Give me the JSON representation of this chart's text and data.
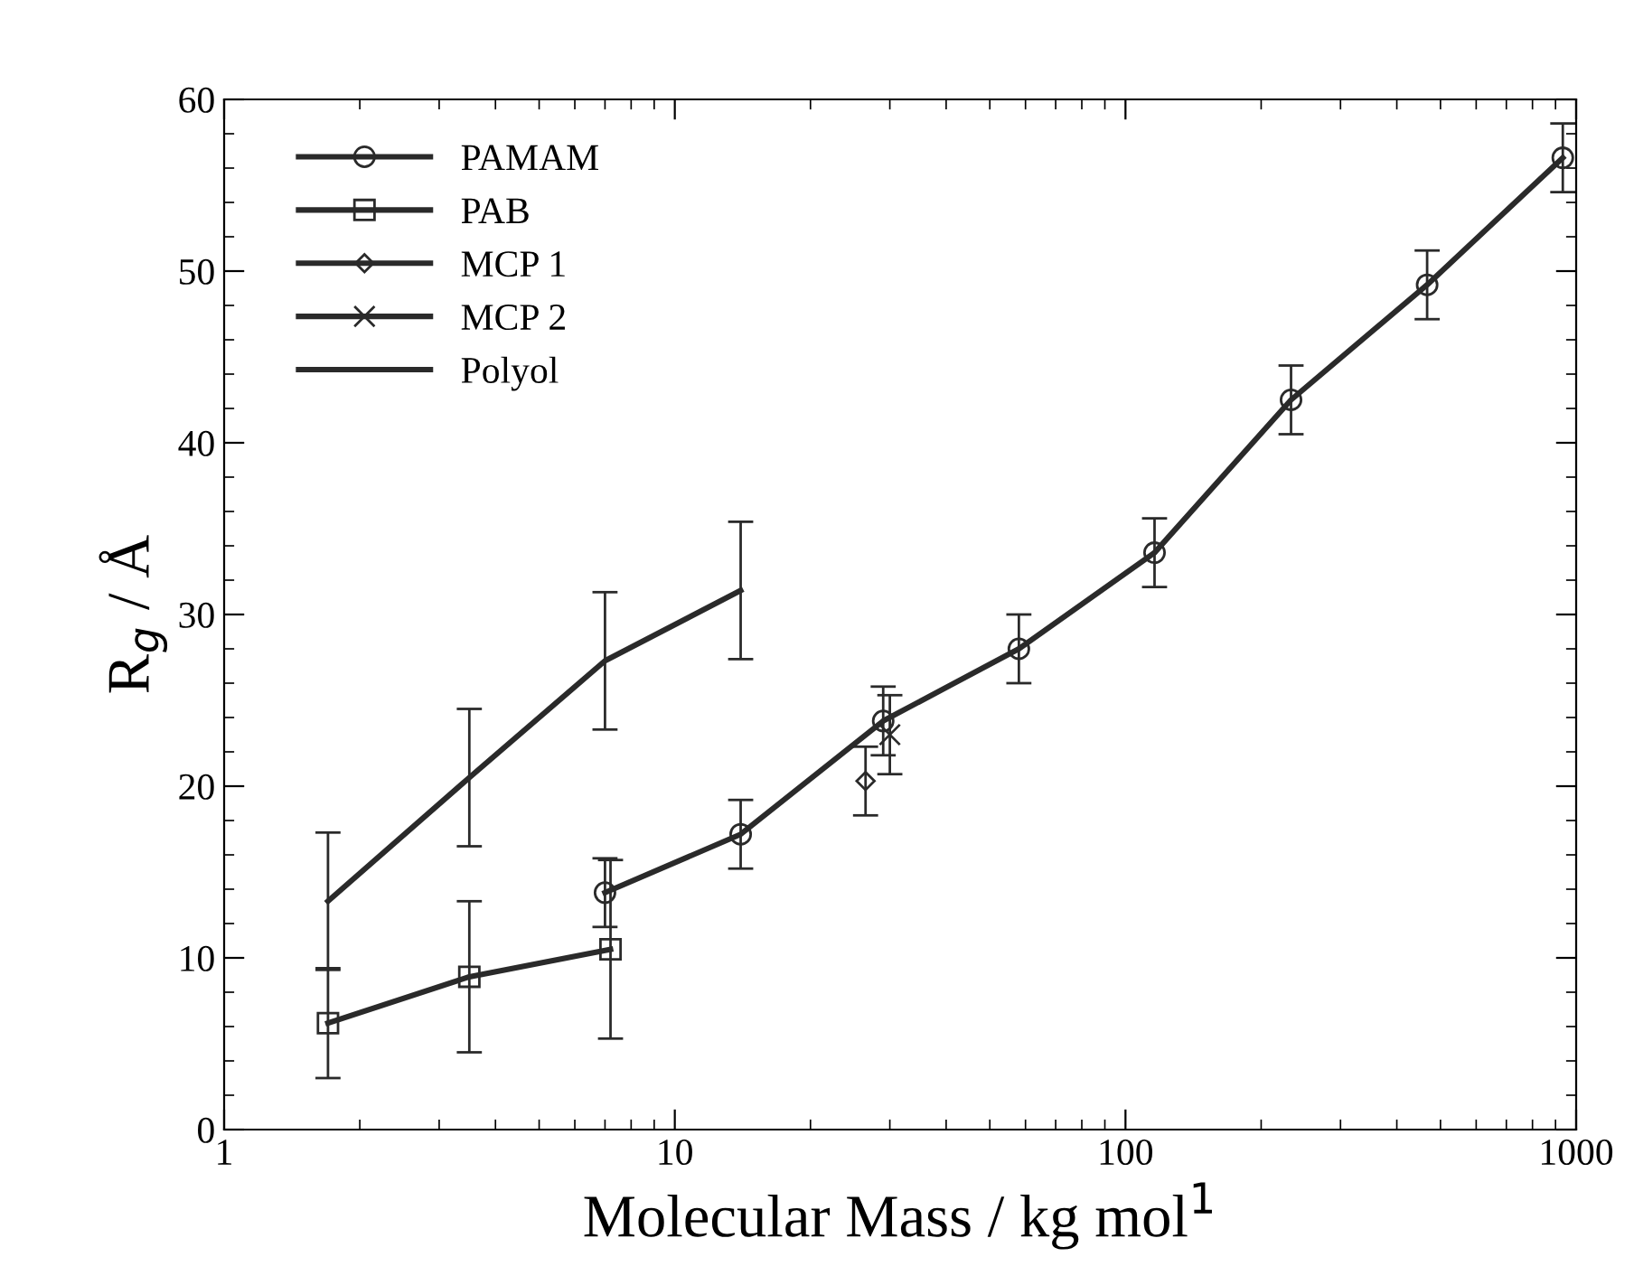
{
  "chart_data": {
    "type": "line",
    "xlabel": "Molecular Mass / kg mol$^{1}$",
    "ylabel": "R$_{g}$ / Å",
    "log": "x",
    "xlim": [
      1,
      1000
    ],
    "xticks": [
      1,
      10,
      100,
      1000
    ],
    "ylim": [
      0,
      60
    ],
    "yticks": [
      0,
      10,
      20,
      30,
      40,
      50,
      60
    ],
    "grid": false,
    "legend": "top left",
    "series": [
      {
        "name": "PAMAM",
        "color": "#2a2a2a",
        "marker": "circle",
        "line_style": "solid",
        "x": [
          7,
          14,
          29,
          58,
          116,
          233,
          467,
          934
        ],
        "values": [
          13.8,
          17.2,
          23.8,
          28,
          33.6,
          42.5,
          49.2,
          56.6
        ],
        "errors": [
          2,
          2,
          2,
          2,
          2,
          2,
          2,
          2
        ]
      },
      {
        "name": "PAB",
        "color": "#2a2a2a",
        "marker": "square",
        "line_style": "solid",
        "x": [
          1.7,
          3.5,
          7.2
        ],
        "values": [
          6.2,
          8.9,
          10.5
        ],
        "errors": [
          3.2,
          4.4,
          5.2
        ]
      },
      {
        "name": "MCP 1",
        "color": "#2a2a2a",
        "marker": "diamond",
        "line_style": "solid",
        "x": [
          26.5
        ],
        "values": [
          20.3
        ],
        "errors": [
          2
        ]
      },
      {
        "name": "MCP 2",
        "color": "#2a2a2a",
        "marker": "cross",
        "line_style": "solid",
        "x": [
          30
        ],
        "values": [
          23
        ],
        "errors": [
          2.3
        ]
      },
      {
        "name": "Polyol",
        "color": "#2a2a2a",
        "marker": "none",
        "line_style": "solid",
        "x": [
          1.7,
          3.5,
          7,
          14
        ],
        "values": [
          13.3,
          20.5,
          27.3,
          31.4
        ],
        "errors": [
          4,
          4,
          4,
          4
        ]
      }
    ]
  }
}
